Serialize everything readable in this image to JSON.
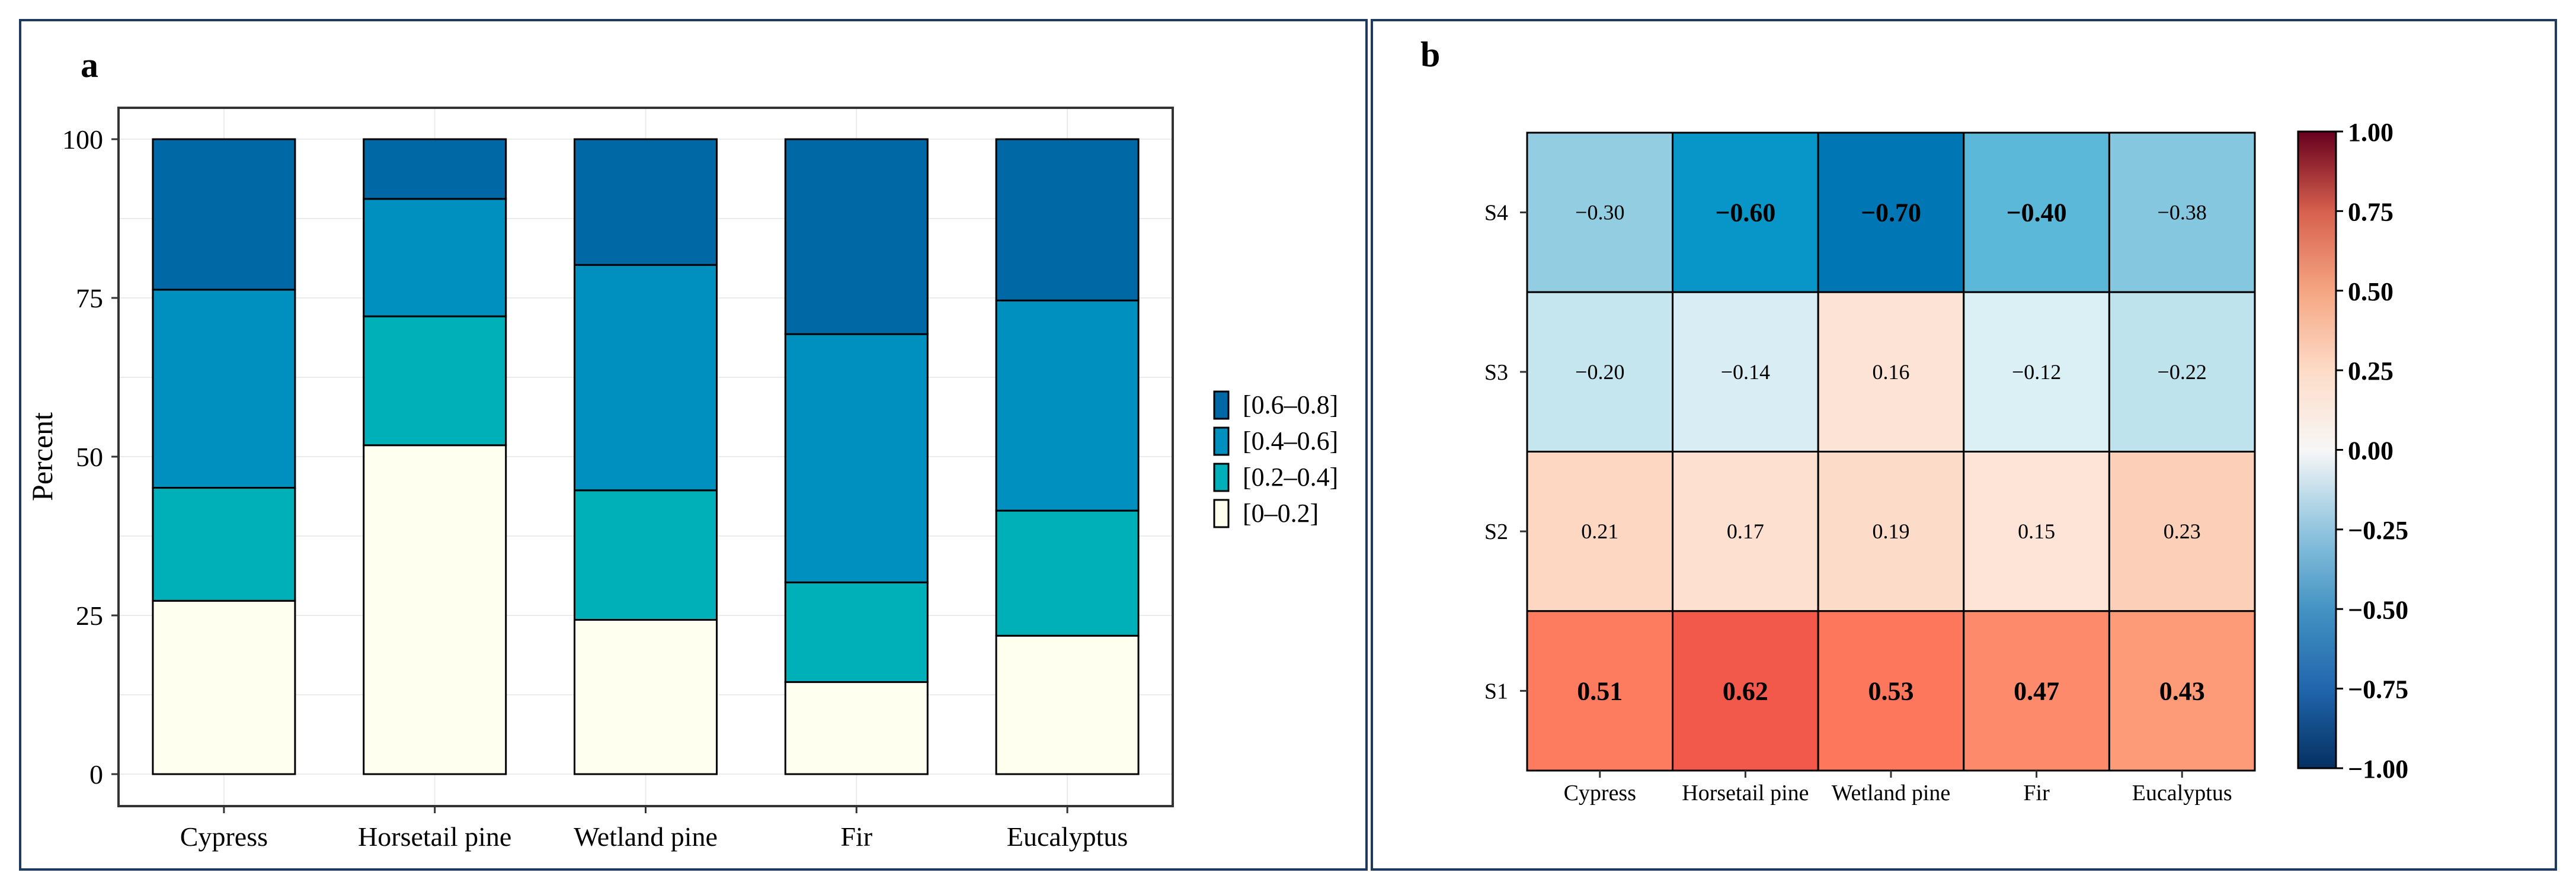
{
  "panel_a": {
    "letter": "a"
  },
  "panel_b": {
    "letter": "b"
  },
  "chart_data": [
    {
      "type": "bar",
      "stacked": true,
      "panel": "a",
      "ylabel": "Percent",
      "xlabel": "",
      "ylim": [
        0,
        100
      ],
      "yticks": [
        0,
        25,
        50,
        75,
        100
      ],
      "grid": true,
      "legend_position": "right",
      "categories": [
        "Cypress",
        "Horsetail pine",
        "Wetland pine",
        "Fir",
        "Eucalyptus"
      ],
      "series": [
        {
          "name": "[0–0.2]",
          "color": "#fffff0",
          "values": [
            27.3,
            51.8,
            24.3,
            14.5,
            21.8
          ]
        },
        {
          "name": "[0.2–0.4]",
          "color": "#00b0b9",
          "values": [
            17.8,
            20.3,
            20.4,
            15.7,
            19.7
          ]
        },
        {
          "name": "[0.4–0.6]",
          "color": "#0090bf",
          "values": [
            31.2,
            18.5,
            35.5,
            39.1,
            33.1
          ]
        },
        {
          "name": "[0.6–0.8]",
          "color": "#0069a5",
          "values": [
            23.7,
            9.4,
            19.8,
            30.7,
            25.4
          ]
        }
      ],
      "legend_order": [
        "[0.6–0.8]",
        "[0.4–0.6]",
        "[0.2–0.4]",
        "[0–0.2]"
      ]
    },
    {
      "type": "heatmap",
      "panel": "b",
      "x_categories": [
        "Cypress",
        "Horsetail pine",
        "Wetland pine",
        "Fir",
        "Eucalyptus"
      ],
      "y_categories": [
        "S4",
        "S3",
        "S2",
        "S1"
      ],
      "values": [
        [
          -0.3,
          -0.6,
          -0.7,
          -0.4,
          -0.38
        ],
        [
          -0.2,
          -0.14,
          0.16,
          -0.12,
          -0.22
        ],
        [
          0.21,
          0.17,
          0.19,
          0.15,
          0.23
        ],
        [
          0.51,
          0.62,
          0.53,
          0.47,
          0.43
        ]
      ],
      "labels": [
        [
          "−0.30",
          "−0.60",
          "−0.70",
          "−0.40",
          "−0.38"
        ],
        [
          "−0.20",
          "−0.14",
          "0.16",
          "−0.12",
          "−0.22"
        ],
        [
          "0.21",
          "0.17",
          "0.19",
          "0.15",
          "0.23"
        ],
        [
          "0.51",
          "0.62",
          "0.53",
          "0.47",
          "0.43"
        ]
      ],
      "bold_threshold": 0.4,
      "colormap": "RdBu_r",
      "vmin": -1.0,
      "vmax": 1.0,
      "colorbar_ticks": [
        "1.00",
        "0.75",
        "0.50",
        "0.25",
        "0.00",
        "−0.25",
        "−0.50",
        "−0.75",
        "−1.00"
      ],
      "colorbar_tick_values": [
        1.0,
        0.75,
        0.5,
        0.25,
        0.0,
        -0.25,
        -0.5,
        -0.75,
        -1.0
      ]
    }
  ]
}
